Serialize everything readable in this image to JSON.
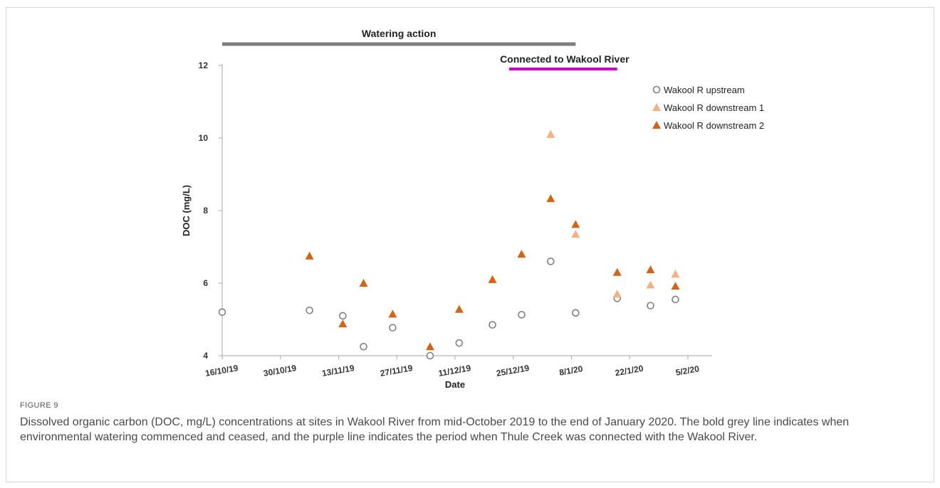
{
  "figure": {
    "label": "FIGURE 9",
    "caption": "Dissolved organic carbon (DOC, mg/L) concentrations at sites in Wakool River from mid-October 2019 to the end of January 2020. The bold grey line indicates when environmental watering commenced and ceased, and the purple line indicates the period when Thule Creek was connected with the Wakool River."
  },
  "colors": {
    "upstream": "#808080",
    "downstream1": "#f4b183",
    "downstream2": "#d46414",
    "watering_bar": "#7f7f7f",
    "connected_bar": "#d400d4",
    "axis": "#a6a6a6"
  },
  "chart_data": {
    "type": "scatter",
    "xlabel": "Date",
    "ylabel": "DOC (mg/L)",
    "x_ticks": [
      "16/10/19",
      "30/10/19",
      "13/11/19",
      "27/11/19",
      "11/12/19",
      "25/12/19",
      "8/1/20",
      "22/1/20",
      "5/2/20"
    ],
    "x_range": [
      "2019-10-16",
      "2020-02-05"
    ],
    "ylim": [
      4,
      12
    ],
    "y_ticks": [
      4,
      6,
      8,
      10,
      12
    ],
    "legend_position": "top-right",
    "series": [
      {
        "name": "Wakool R upstream",
        "marker": "open-circle",
        "points": [
          {
            "x": "2019-10-16",
            "y": 5.2
          },
          {
            "x": "2019-11-06",
            "y": 5.25
          },
          {
            "x": "2019-11-14",
            "y": 5.1
          },
          {
            "x": "2019-11-19",
            "y": 4.25
          },
          {
            "x": "2019-11-26",
            "y": 4.77
          },
          {
            "x": "2019-12-05",
            "y": 4.0
          },
          {
            "x": "2019-12-12",
            "y": 4.35
          },
          {
            "x": "2019-12-20",
            "y": 4.85
          },
          {
            "x": "2019-12-27",
            "y": 5.13
          },
          {
            "x": "2020-01-03",
            "y": 6.6
          },
          {
            "x": "2020-01-09",
            "y": 5.18
          },
          {
            "x": "2020-01-19",
            "y": 5.58
          },
          {
            "x": "2020-01-27",
            "y": 5.38
          },
          {
            "x": "2020-02-02",
            "y": 5.55
          }
        ]
      },
      {
        "name": "Wakool R downstream 1",
        "marker": "triangle",
        "points": [
          {
            "x": "2020-01-03",
            "y": 10.1
          },
          {
            "x": "2020-01-09",
            "y": 7.35
          },
          {
            "x": "2020-01-19",
            "y": 5.7
          },
          {
            "x": "2020-01-27",
            "y": 5.95
          },
          {
            "x": "2020-02-02",
            "y": 6.25
          }
        ]
      },
      {
        "name": "Wakool R downstream 2",
        "marker": "triangle",
        "points": [
          {
            "x": "2019-11-06",
            "y": 6.75
          },
          {
            "x": "2019-11-14",
            "y": 4.88
          },
          {
            "x": "2019-11-19",
            "y": 6.0
          },
          {
            "x": "2019-11-26",
            "y": 5.15
          },
          {
            "x": "2019-12-05",
            "y": 4.25
          },
          {
            "x": "2019-12-12",
            "y": 5.28
          },
          {
            "x": "2019-12-20",
            "y": 6.1
          },
          {
            "x": "2019-12-27",
            "y": 6.8
          },
          {
            "x": "2020-01-03",
            "y": 8.33
          },
          {
            "x": "2020-01-09",
            "y": 7.62
          },
          {
            "x": "2020-01-19",
            "y": 6.3
          },
          {
            "x": "2020-01-27",
            "y": 6.37
          },
          {
            "x": "2020-02-02",
            "y": 5.92
          }
        ]
      }
    ],
    "annotations": [
      {
        "label": "Watering action",
        "start": "2019-10-16",
        "end": "2020-01-09"
      },
      {
        "label": "Connected to Wakool River",
        "start": "2019-12-24",
        "end": "2020-01-19"
      }
    ]
  }
}
